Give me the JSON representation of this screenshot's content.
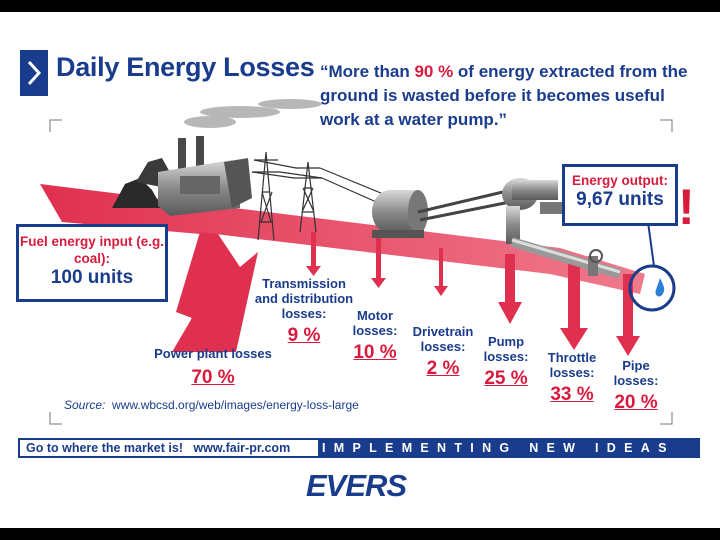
{
  "header": {
    "title": "Daily Energy Losses",
    "quote": {
      "part1": "“More than ",
      "highlight": "90 %",
      "part2": " of energy extracted from the ground is wasted before it becomes useful work at a water pump.”"
    }
  },
  "input": {
    "label": "Fuel energy input (e.g. coal):",
    "value": "100 units"
  },
  "output": {
    "label": "Energy output:",
    "value": "9,67 units",
    "exclaim": "!"
  },
  "losses": [
    {
      "label": "Power plant losses",
      "value": "70 %"
    },
    {
      "label": "Transmission and distribution losses:",
      "value": "9 %"
    },
    {
      "label": "Motor losses:",
      "value": "10 %"
    },
    {
      "label": "Drivetrain losses:",
      "value": "2 %"
    },
    {
      "label": "Pump losses:",
      "value": "25 %"
    },
    {
      "label": "Throttle losses:",
      "value": "33 %"
    },
    {
      "label": "Pipe losses:",
      "value": "20 %"
    }
  ],
  "source": {
    "label": "Source:",
    "url": "www.wbcsd.org/web/images/energy-loss-large"
  },
  "footer": {
    "left_text": "Go to where the market is!",
    "left_url": "www.fair-pr.com",
    "tagline": "IMPLEMENTING NEW IDEAS"
  },
  "logo": {
    "text": "EVERS"
  },
  "colors": {
    "brand_blue": "#1a3c8c",
    "loss_red": "#d81b3c",
    "flow_pink": "#e8485f"
  }
}
